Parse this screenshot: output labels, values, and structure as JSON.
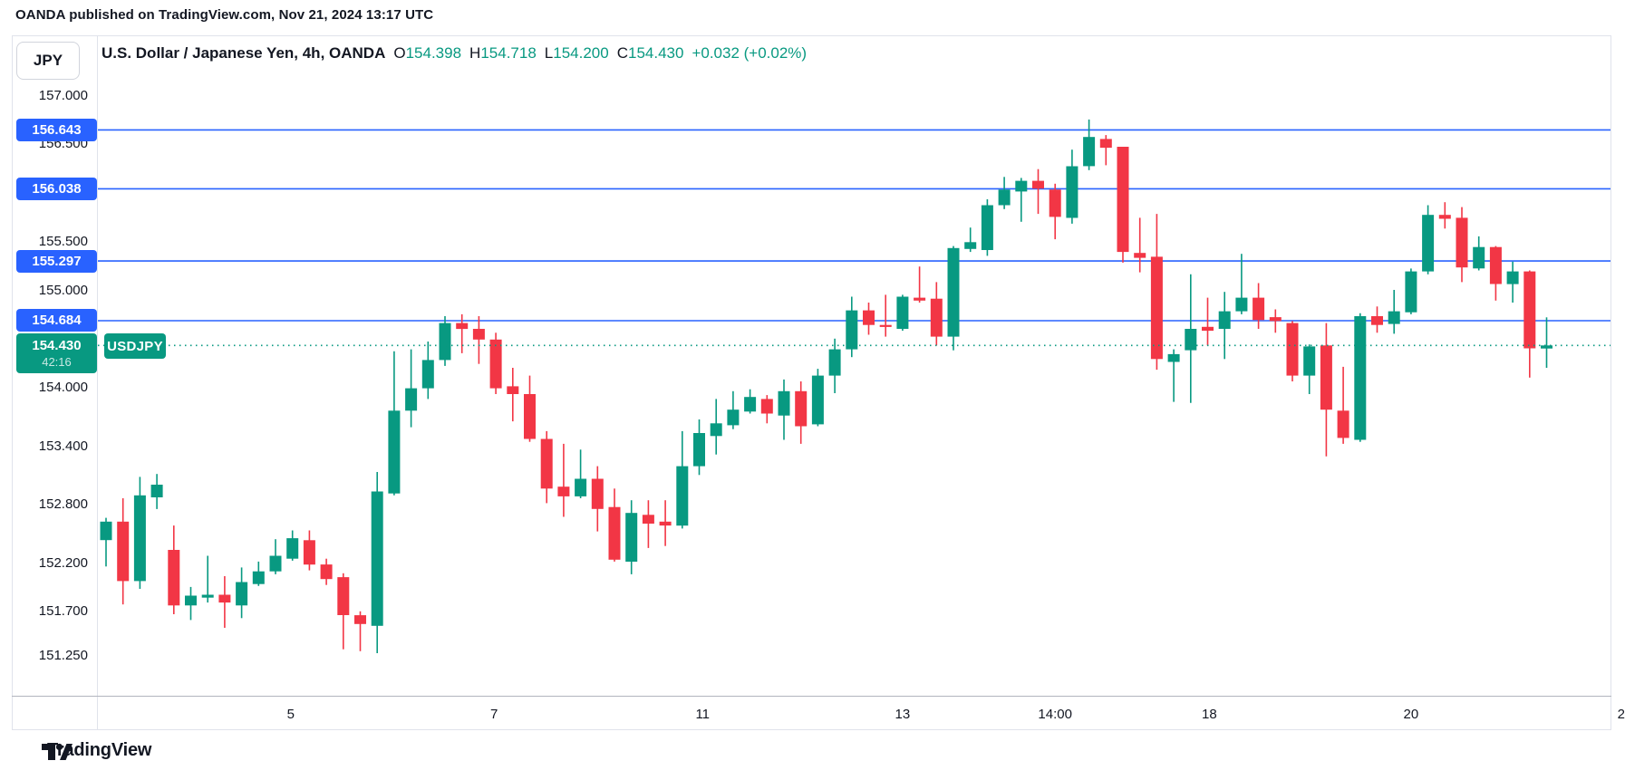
{
  "published_line": "OANDA published on TradingView.com, Nov 21, 2024 13:17 UTC",
  "chart": {
    "symbol_button": "JPY",
    "title": "U.S. Dollar / Japanese Yen, 4h, OANDA",
    "ohlc": {
      "o_label": "O",
      "o": "154.398",
      "h_label": "H",
      "h": "154.718",
      "l_label": "L",
      "l": "154.200",
      "c_label": "C",
      "c": "154.430",
      "change": "+0.032 (+0.02%)"
    },
    "price_axis_labels": [
      "157.000",
      "156.500",
      "155.500",
      "155.000",
      "154.000",
      "153.400",
      "152.800",
      "152.200",
      "151.700",
      "151.250"
    ],
    "level_badges": [
      "156.643",
      "156.038",
      "155.297",
      "154.684"
    ],
    "current": {
      "price": "154.430",
      "countdown": "42:16",
      "tag": "USDJPY"
    },
    "time_axis_labels": [
      {
        "label": "5",
        "i": 10.9
      },
      {
        "label": "7",
        "i": 22.9
      },
      {
        "label": "11",
        "i": 35.2
      },
      {
        "label": "13",
        "i": 47.0
      },
      {
        "label": "14:00",
        "i": 56.0
      },
      {
        "label": "18",
        "i": 65.1
      },
      {
        "label": "20",
        "i": 77.0
      },
      {
        "label": "2",
        "i": 89.4
      }
    ],
    "colors": {
      "up": "#089981",
      "down": "#F23645",
      "level_line": "#2962FF",
      "current_line": "#089981",
      "text": "#131722"
    }
  },
  "chart_data": {
    "type": "candlestick",
    "symbol": "USDJPY",
    "timeframe": "4h",
    "title": "U.S. Dollar / Japanese Yen, 4h, OANDA",
    "ylim_visible": [
      150.85,
      157.25
    ],
    "grid": false,
    "horizontal_levels": [
      156.643,
      156.038,
      155.297,
      154.684
    ],
    "current_price": 154.43,
    "candles_ohlc": [
      [
        152.43,
        152.66,
        152.16,
        152.62
      ],
      [
        152.62,
        152.86,
        151.77,
        152.01
      ],
      [
        152.01,
        153.08,
        151.93,
        152.89
      ],
      [
        152.87,
        153.11,
        152.75,
        153.0
      ],
      [
        152.33,
        152.58,
        151.67,
        151.76
      ],
      [
        151.76,
        151.95,
        151.61,
        151.86
      ],
      [
        151.84,
        152.27,
        151.79,
        151.87
      ],
      [
        151.87,
        152.06,
        151.53,
        151.79
      ],
      [
        151.76,
        152.15,
        151.63,
        152.0
      ],
      [
        151.98,
        152.21,
        151.96,
        152.11
      ],
      [
        152.11,
        152.44,
        152.08,
        152.27
      ],
      [
        152.24,
        152.53,
        152.22,
        152.45
      ],
      [
        152.43,
        152.53,
        152.12,
        152.18
      ],
      [
        152.18,
        152.24,
        151.97,
        152.03
      ],
      [
        152.05,
        152.09,
        151.31,
        151.66
      ],
      [
        151.66,
        151.7,
        151.29,
        151.57
      ],
      [
        151.55,
        153.13,
        151.27,
        152.93
      ],
      [
        152.91,
        154.37,
        152.89,
        153.76
      ],
      [
        153.76,
        154.39,
        153.59,
        153.99
      ],
      [
        153.99,
        154.47,
        153.88,
        154.28
      ],
      [
        154.28,
        154.73,
        154.22,
        154.66
      ],
      [
        154.66,
        154.75,
        154.35,
        154.6
      ],
      [
        154.6,
        154.73,
        154.24,
        154.49
      ],
      [
        154.49,
        154.56,
        153.93,
        153.99
      ],
      [
        154.01,
        154.2,
        153.65,
        153.93
      ],
      [
        153.93,
        154.12,
        153.44,
        153.47
      ],
      [
        153.47,
        153.55,
        152.81,
        152.96
      ],
      [
        152.98,
        153.42,
        152.67,
        152.88
      ],
      [
        152.88,
        153.36,
        152.86,
        153.06
      ],
      [
        153.06,
        153.19,
        152.52,
        152.75
      ],
      [
        152.77,
        152.96,
        152.21,
        152.23
      ],
      [
        152.21,
        152.84,
        152.08,
        152.71
      ],
      [
        152.69,
        152.84,
        152.35,
        152.6
      ],
      [
        152.62,
        152.84,
        152.37,
        152.58
      ],
      [
        152.58,
        153.55,
        152.55,
        153.19
      ],
      [
        153.19,
        153.67,
        153.1,
        153.53
      ],
      [
        153.5,
        153.88,
        153.31,
        153.63
      ],
      [
        153.61,
        153.96,
        153.57,
        153.77
      ],
      [
        153.75,
        153.98,
        153.73,
        153.9
      ],
      [
        153.88,
        153.92,
        153.63,
        153.73
      ],
      [
        153.71,
        154.08,
        153.46,
        153.96
      ],
      [
        153.96,
        154.06,
        153.42,
        153.6
      ],
      [
        153.62,
        154.19,
        153.6,
        154.12
      ],
      [
        154.12,
        154.5,
        153.94,
        154.39
      ],
      [
        154.39,
        154.93,
        154.31,
        154.79
      ],
      [
        154.79,
        154.87,
        154.54,
        154.64
      ],
      [
        154.64,
        154.95,
        154.52,
        154.62
      ],
      [
        154.6,
        154.95,
        154.58,
        154.93
      ],
      [
        154.92,
        155.24,
        154.87,
        154.89
      ],
      [
        154.91,
        155.08,
        154.43,
        154.52
      ],
      [
        154.52,
        155.45,
        154.38,
        155.43
      ],
      [
        155.42,
        155.64,
        155.39,
        155.49
      ],
      [
        155.41,
        155.93,
        155.35,
        155.87
      ],
      [
        155.87,
        156.16,
        155.83,
        156.03
      ],
      [
        156.01,
        156.15,
        155.7,
        156.12
      ],
      [
        156.12,
        156.24,
        155.78,
        156.04
      ],
      [
        156.03,
        156.09,
        155.52,
        155.75
      ],
      [
        155.74,
        156.44,
        155.68,
        156.27
      ],
      [
        156.27,
        156.75,
        156.23,
        156.57
      ],
      [
        156.55,
        156.59,
        156.28,
        156.46
      ],
      [
        156.47,
        156.47,
        155.28,
        155.39
      ],
      [
        155.38,
        155.74,
        155.18,
        155.33
      ],
      [
        155.34,
        155.78,
        154.18,
        154.29
      ],
      [
        154.26,
        154.39,
        153.85,
        154.34
      ],
      [
        154.38,
        155.16,
        153.84,
        154.6
      ],
      [
        154.62,
        154.92,
        154.43,
        154.58
      ],
      [
        154.6,
        154.98,
        154.29,
        154.78
      ],
      [
        154.78,
        155.37,
        154.75,
        154.92
      ],
      [
        154.92,
        155.07,
        154.6,
        154.69
      ],
      [
        154.72,
        154.8,
        154.56,
        154.68
      ],
      [
        154.66,
        154.68,
        154.06,
        154.12
      ],
      [
        154.12,
        154.44,
        153.93,
        154.42
      ],
      [
        154.43,
        154.66,
        153.29,
        153.77
      ],
      [
        153.76,
        154.21,
        153.42,
        153.48
      ],
      [
        153.46,
        154.76,
        153.44,
        154.73
      ],
      [
        154.73,
        154.83,
        154.56,
        154.64
      ],
      [
        154.65,
        155.0,
        154.55,
        154.78
      ],
      [
        154.77,
        155.22,
        154.75,
        155.19
      ],
      [
        155.19,
        155.87,
        155.16,
        155.77
      ],
      [
        155.77,
        155.9,
        155.63,
        155.73
      ],
      [
        155.74,
        155.85,
        155.08,
        155.23
      ],
      [
        155.22,
        155.55,
        155.2,
        155.44
      ],
      [
        155.44,
        155.45,
        154.89,
        155.06
      ],
      [
        155.06,
        155.29,
        154.87,
        155.19
      ],
      [
        155.19,
        155.2,
        154.1,
        154.4
      ],
      [
        154.398,
        154.718,
        154.2,
        154.43
      ]
    ]
  },
  "footer": {
    "logo_text": "TradingView"
  }
}
